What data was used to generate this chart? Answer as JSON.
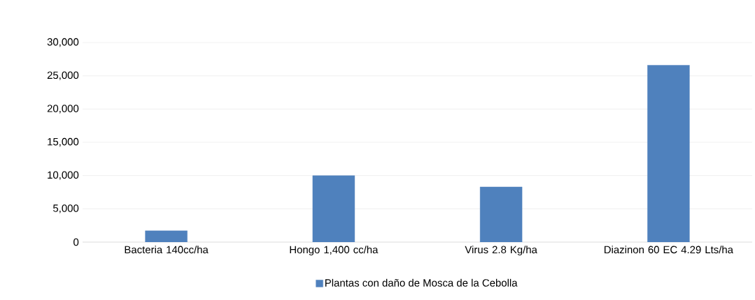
{
  "chart_data": {
    "type": "bar",
    "categories": [
      "Bacteria 140cc/ha",
      "Hongo 1,400 cc/ha",
      "Virus 2.8 Kg/ha",
      "Diazinon 60 EC 4.29 Lts/ha"
    ],
    "series": [
      {
        "name": "Plantas con daño de Mosca de la Cebolla",
        "color": "#4f81bd",
        "values": [
          1700,
          10000,
          8300,
          26600
        ]
      }
    ],
    "ylim": [
      0,
      30000
    ],
    "yticks": [
      {
        "value": 0,
        "label": "0"
      },
      {
        "value": 5000,
        "label": "5,000"
      },
      {
        "value": 10000,
        "label": "10,000"
      },
      {
        "value": 15000,
        "label": "15,000"
      },
      {
        "value": 20000,
        "label": "20,000"
      },
      {
        "value": 25000,
        "label": "25,000"
      },
      {
        "value": 30000,
        "label": "30,000"
      }
    ],
    "grid": "y",
    "legend": "bottom"
  }
}
